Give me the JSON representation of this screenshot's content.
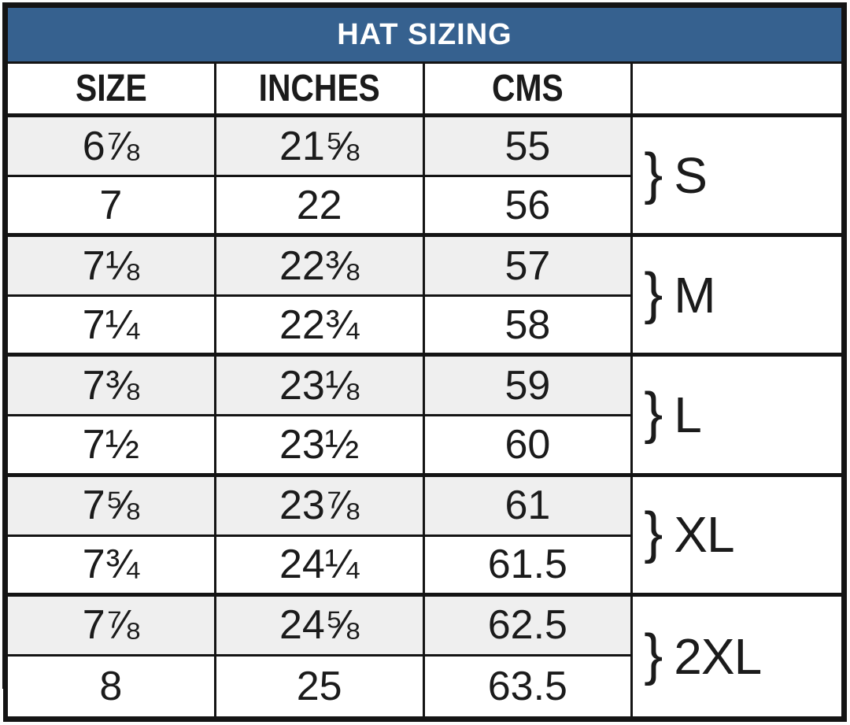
{
  "chart_data": {
    "type": "table",
    "title": "HAT SIZING",
    "columns": [
      "SIZE",
      "INCHES",
      "CMS",
      ""
    ],
    "rows": [
      {
        "size": "6⅞",
        "inches": "21⅝",
        "cms": "55"
      },
      {
        "size": "7",
        "inches": "22",
        "cms": "56"
      },
      {
        "size": "7⅛",
        "inches": "22⅜",
        "cms": "57"
      },
      {
        "size": "7¼",
        "inches": "22¾",
        "cms": "58"
      },
      {
        "size": "7⅜",
        "inches": "23⅛",
        "cms": "59"
      },
      {
        "size": "7½",
        "inches": "23½",
        "cms": "60"
      },
      {
        "size": "7⅝",
        "inches": "23⅞",
        "cms": "61"
      },
      {
        "size": "7¾",
        "inches": "24¼",
        "cms": "61.5"
      },
      {
        "size": "7⅞",
        "inches": "24⅝",
        "cms": "62.5"
      },
      {
        "size": "8",
        "inches": "25",
        "cms": "63.5"
      }
    ],
    "row_groups": [
      {
        "rows": [
          0,
          1
        ],
        "bracket": "}",
        "label": "S"
      },
      {
        "rows": [
          2,
          3
        ],
        "bracket": "}",
        "label": "M"
      },
      {
        "rows": [
          4,
          5
        ],
        "bracket": "}",
        "label": "L"
      },
      {
        "rows": [
          6,
          7
        ],
        "bracket": "}",
        "label": "XL"
      },
      {
        "rows": [
          8,
          9
        ],
        "bracket": "}",
        "label": "2XL"
      }
    ],
    "layout_hints": {
      "shaded_row_indices": [
        0,
        2,
        4,
        6,
        8
      ],
      "legend_position": "none",
      "grid": "on"
    }
  },
  "colors": {
    "title_bg": "#36618f",
    "title_text": "#ffffff",
    "row_shaded": "#efefef",
    "row_plain": "#ffffff",
    "border": "#141414",
    "text": "#1b1b1b"
  }
}
